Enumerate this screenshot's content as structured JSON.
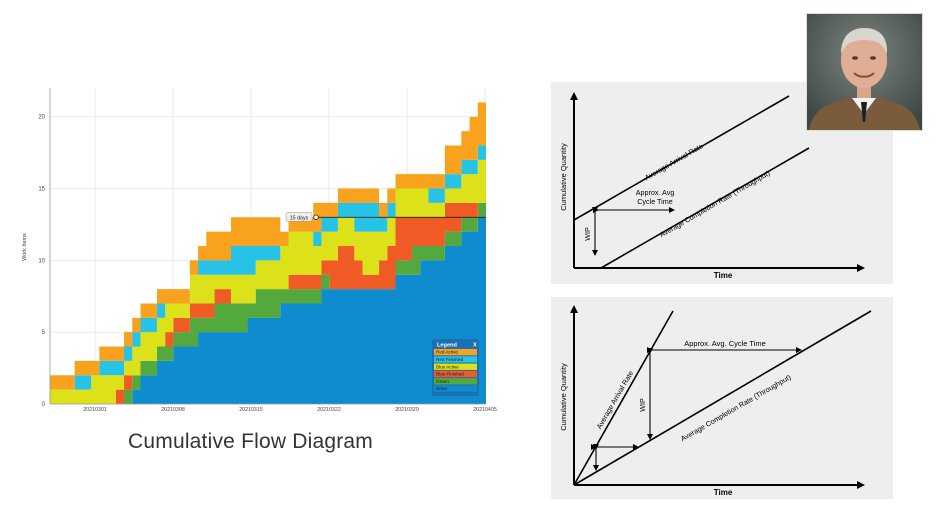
{
  "cfd": {
    "chart_data": {
      "type": "area",
      "stacked": true,
      "ylabel": "Work Items",
      "ylim": [
        0,
        22
      ],
      "yticks": [
        0,
        5,
        10,
        15,
        20
      ],
      "xticks": [
        "20210301",
        "20210308",
        "20210315",
        "20210322",
        "20210329",
        "20210405"
      ],
      "x_index": [
        0,
        1,
        2,
        3,
        4,
        5,
        6,
        7,
        8,
        9,
        10,
        11,
        12,
        13,
        14,
        15,
        16,
        17,
        18,
        19,
        20,
        21,
        22,
        23,
        24,
        25,
        26,
        27,
        28,
        29,
        30,
        31,
        32,
        33,
        34,
        35,
        36,
        37,
        38,
        39,
        40,
        41,
        42,
        43,
        44,
        45,
        46,
        47,
        48,
        49,
        50,
        51,
        52,
        53
      ],
      "series": [
        {
          "name": "Done",
          "color": "#0e8ccf",
          "values": [
            0,
            0,
            0,
            0,
            0,
            0,
            0,
            0,
            0,
            0,
            1,
            2,
            2,
            3,
            3,
            4,
            4,
            4,
            5,
            5,
            5,
            5,
            5,
            5,
            6,
            6,
            6,
            6,
            7,
            7,
            7,
            7,
            7,
            8,
            8,
            8,
            8,
            8,
            8,
            8,
            8,
            8,
            9,
            9,
            9,
            10,
            10,
            10,
            11,
            11,
            12,
            12,
            13,
            13
          ]
        },
        {
          "name": "Green",
          "color": "#53a93d",
          "values": [
            0,
            0,
            0,
            0,
            0,
            0,
            0,
            0,
            0,
            1,
            1,
            1,
            1,
            1,
            1,
            1,
            1,
            2,
            1,
            1,
            2,
            2,
            2,
            2,
            1,
            2,
            2,
            2,
            1,
            1,
            1,
            1,
            1,
            1,
            0,
            0,
            0,
            0,
            0,
            0,
            0,
            0,
            1,
            1,
            2,
            1,
            1,
            1,
            1,
            1,
            1,
            1,
            1,
            1
          ]
        },
        {
          "name": "Blue Finished",
          "color": "#f05a24",
          "values": [
            0,
            0,
            0,
            0,
            0,
            0,
            0,
            0,
            1,
            1,
            0,
            0,
            0,
            0,
            1,
            1,
            1,
            1,
            1,
            1,
            1,
            1,
            0,
            0,
            0,
            0,
            0,
            0,
            0,
            1,
            1,
            1,
            1,
            1,
            2,
            3,
            3,
            2,
            1,
            1,
            2,
            3,
            3,
            3,
            2,
            2,
            2,
            2,
            2,
            2,
            1,
            1,
            0,
            0
          ]
        },
        {
          "name": "Blue Active",
          "color": "#dde11a",
          "values": [
            1,
            1,
            1,
            1,
            1,
            2,
            2,
            2,
            1,
            1,
            2,
            2,
            2,
            2,
            2,
            1,
            1,
            2,
            2,
            2,
            1,
            1,
            2,
            2,
            2,
            2,
            2,
            2,
            3,
            3,
            3,
            3,
            2,
            2,
            2,
            2,
            2,
            2,
            3,
            3,
            2,
            2,
            2,
            2,
            2,
            2,
            1,
            1,
            1,
            1,
            2,
            2,
            3,
            3
          ]
        },
        {
          "name": "Red Finished",
          "color": "#26c3e6",
          "values": [
            0,
            0,
            0,
            1,
            1,
            0,
            1,
            1,
            1,
            1,
            1,
            1,
            1,
            1,
            0,
            0,
            0,
            0,
            1,
            1,
            1,
            1,
            2,
            2,
            2,
            1,
            1,
            1,
            0,
            0,
            0,
            0,
            1,
            1,
            1,
            1,
            1,
            2,
            2,
            2,
            1,
            1,
            0,
            0,
            0,
            0,
            1,
            1,
            1,
            1,
            1,
            1,
            1,
            1
          ]
        },
        {
          "name": "Red Active",
          "color": "#f8a21d",
          "values": [
            1,
            1,
            1,
            1,
            1,
            1,
            1,
            1,
            1,
            1,
            1,
            1,
            1,
            1,
            1,
            1,
            1,
            1,
            1,
            2,
            2,
            2,
            2,
            2,
            2,
            2,
            2,
            2,
            1,
            1,
            1,
            1,
            2,
            1,
            1,
            1,
            1,
            1,
            1,
            1,
            1,
            1,
            1,
            1,
            1,
            1,
            1,
            1,
            2,
            2,
            2,
            3,
            3,
            3
          ]
        }
      ],
      "annotation": {
        "label": "15 days",
        "y": 13
      },
      "legend": {
        "title": "Legend",
        "close": "X",
        "position": "bottom-right"
      }
    }
  },
  "caption": "Cumulative Flow Diagram",
  "diagram1": {
    "ylabel": "Cumulative Quantity",
    "xlabel": "Time",
    "arrival_label": "Average Arrival Rate",
    "completion_label": "Average Completion Rate (Throughput)",
    "cycle_line1": "Approx. Avg",
    "cycle_line2": "Cycle Time",
    "wip_label": "WIP"
  },
  "diagram2": {
    "ylabel": "Cumulative Quantity",
    "xlabel": "Time",
    "arrival_label": "Average Arrival Rate",
    "completion_label": "Average Completion Rate (Throughput)",
    "cycle_label": "Approx. Avg. Cycle Time",
    "wip_label": "WIP"
  },
  "photo": {
    "icon": "person-portrait"
  }
}
